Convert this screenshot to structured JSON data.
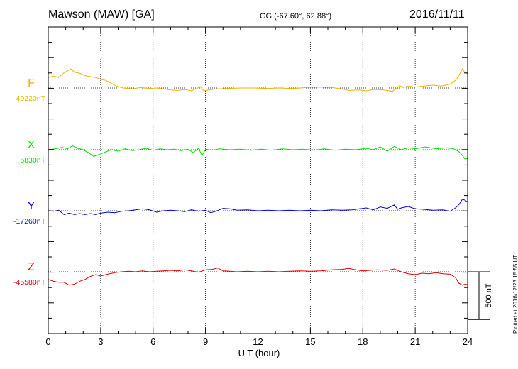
{
  "header": {
    "title": "Mawson (MAW)  [GA]",
    "coords": "GG (-67.60°,  62.88°)",
    "date": "2016/11/11"
  },
  "footer": {
    "plotted": "Plotted at 2016/12/23 15:55 UT"
  },
  "scale_bar": {
    "label": "500 nT",
    "value": 500
  },
  "colors": {
    "F": "#f2b000",
    "X": "#00e000",
    "Y": "#0000e0",
    "Z": "#e00000",
    "axis": "#000000"
  },
  "chart_data": {
    "type": "line",
    "title": "Mawson (MAW)  [GA]",
    "xlabel": "U T (hour)",
    "xlim": [
      0,
      24
    ],
    "xticks": [
      0,
      3,
      6,
      9,
      12,
      15,
      18,
      21,
      24
    ],
    "grid": true,
    "nT_per_panel_row": 640,
    "series": [
      {
        "name": "F",
        "baseline_label": "49220nT",
        "baseline": 49220,
        "color": "#f2b000",
        "points": [
          [
            0,
            49330
          ],
          [
            0.3,
            49345
          ],
          [
            0.6,
            49330
          ],
          [
            0.9,
            49380
          ],
          [
            1.1,
            49400
          ],
          [
            1.3,
            49420
          ],
          [
            1.5,
            49385
          ],
          [
            1.8,
            49375
          ],
          [
            2.1,
            49350
          ],
          [
            2.4,
            49340
          ],
          [
            2.7,
            49330
          ],
          [
            3.0,
            49310
          ],
          [
            3.3,
            49300
          ],
          [
            3.6,
            49270
          ],
          [
            3.9,
            49240
          ],
          [
            4.3,
            49220
          ],
          [
            4.8,
            49210
          ],
          [
            5.3,
            49225
          ],
          [
            5.8,
            49215
          ],
          [
            6.2,
            49220
          ],
          [
            6.6,
            49210
          ],
          [
            7.0,
            49200
          ],
          [
            7.4,
            49195
          ],
          [
            7.8,
            49205
          ],
          [
            8.2,
            49190
          ],
          [
            8.5,
            49215
          ],
          [
            8.7,
            49235
          ],
          [
            8.9,
            49190
          ],
          [
            9.2,
            49200
          ],
          [
            9.6,
            49210
          ],
          [
            10.2,
            49215
          ],
          [
            11.0,
            49220
          ],
          [
            11.8,
            49220
          ],
          [
            12.5,
            49215
          ],
          [
            13.2,
            49220
          ],
          [
            14.0,
            49215
          ],
          [
            14.8,
            49225
          ],
          [
            15.5,
            49230
          ],
          [
            16.2,
            49225
          ],
          [
            16.8,
            49210
          ],
          [
            17.2,
            49195
          ],
          [
            17.8,
            49200
          ],
          [
            18.2,
            49190
          ],
          [
            18.6,
            49205
          ],
          [
            19.2,
            49200
          ],
          [
            19.7,
            49185
          ],
          [
            19.9,
            49210
          ],
          [
            20.1,
            49245
          ],
          [
            20.3,
            49225
          ],
          [
            20.6,
            49240
          ],
          [
            21.0,
            49230
          ],
          [
            21.5,
            49240
          ],
          [
            22.0,
            49250
          ],
          [
            22.5,
            49240
          ],
          [
            23.0,
            49260
          ],
          [
            23.3,
            49300
          ],
          [
            23.5,
            49350
          ],
          [
            23.7,
            49420
          ],
          [
            23.85,
            49380
          ],
          [
            24.0,
            49370
          ]
        ]
      },
      {
        "name": "X",
        "baseline_label": "6830nT",
        "baseline": 6830,
        "color": "#00e000",
        "points": [
          [
            0,
            6830
          ],
          [
            0.4,
            6840
          ],
          [
            0.8,
            6855
          ],
          [
            1.1,
            6840
          ],
          [
            1.4,
            6870
          ],
          [
            1.7,
            6845
          ],
          [
            2.0,
            6830
          ],
          [
            2.3,
            6800
          ],
          [
            2.6,
            6760
          ],
          [
            2.9,
            6780
          ],
          [
            3.2,
            6800
          ],
          [
            3.6,
            6830
          ],
          [
            4.0,
            6815
          ],
          [
            4.4,
            6840
          ],
          [
            4.8,
            6820
          ],
          [
            5.2,
            6830
          ],
          [
            5.6,
            6845
          ],
          [
            6.0,
            6825
          ],
          [
            6.4,
            6840
          ],
          [
            6.8,
            6830
          ],
          [
            7.2,
            6835
          ],
          [
            7.6,
            6820
          ],
          [
            8.0,
            6835
          ],
          [
            8.3,
            6800
          ],
          [
            8.6,
            6845
          ],
          [
            8.8,
            6770
          ],
          [
            9.0,
            6835
          ],
          [
            9.4,
            6825
          ],
          [
            9.8,
            6840
          ],
          [
            10.4,
            6830
          ],
          [
            11.0,
            6835
          ],
          [
            11.6,
            6825
          ],
          [
            12.2,
            6835
          ],
          [
            12.8,
            6825
          ],
          [
            13.4,
            6840
          ],
          [
            14.0,
            6830
          ],
          [
            14.6,
            6835
          ],
          [
            15.2,
            6825
          ],
          [
            15.8,
            6840
          ],
          [
            16.4,
            6825
          ],
          [
            17.0,
            6835
          ],
          [
            17.6,
            6830
          ],
          [
            18.2,
            6845
          ],
          [
            18.6,
            6830
          ],
          [
            19.0,
            6860
          ],
          [
            19.4,
            6815
          ],
          [
            19.8,
            6865
          ],
          [
            20.2,
            6830
          ],
          [
            20.6,
            6850
          ],
          [
            21.0,
            6840
          ],
          [
            21.6,
            6860
          ],
          [
            22.2,
            6840
          ],
          [
            22.8,
            6850
          ],
          [
            23.2,
            6840
          ],
          [
            23.5,
            6810
          ],
          [
            23.7,
            6770
          ],
          [
            23.85,
            6730
          ],
          [
            24.0,
            6740
          ]
        ]
      },
      {
        "name": "Y",
        "baseline_label": "-17260nT",
        "baseline": -17260,
        "color": "#0000e0",
        "points": [
          [
            0,
            -17260
          ],
          [
            0.3,
            -17265
          ],
          [
            0.6,
            -17255
          ],
          [
            0.9,
            -17300
          ],
          [
            1.2,
            -17285
          ],
          [
            1.5,
            -17300
          ],
          [
            1.8,
            -17290
          ],
          [
            2.1,
            -17300
          ],
          [
            2.4,
            -17290
          ],
          [
            2.7,
            -17300
          ],
          [
            3.0,
            -17285
          ],
          [
            3.4,
            -17275
          ],
          [
            3.8,
            -17280
          ],
          [
            4.2,
            -17265
          ],
          [
            4.6,
            -17260
          ],
          [
            5.0,
            -17250
          ],
          [
            5.4,
            -17240
          ],
          [
            5.8,
            -17250
          ],
          [
            6.2,
            -17275
          ],
          [
            6.6,
            -17260
          ],
          [
            7.0,
            -17255
          ],
          [
            7.4,
            -17260
          ],
          [
            7.8,
            -17270
          ],
          [
            8.2,
            -17250
          ],
          [
            8.6,
            -17265
          ],
          [
            9.0,
            -17255
          ],
          [
            9.3,
            -17280
          ],
          [
            9.6,
            -17265
          ],
          [
            10.0,
            -17235
          ],
          [
            10.4,
            -17240
          ],
          [
            10.8,
            -17255
          ],
          [
            11.4,
            -17250
          ],
          [
            12.0,
            -17260
          ],
          [
            12.6,
            -17255
          ],
          [
            13.2,
            -17260
          ],
          [
            13.8,
            -17255
          ],
          [
            14.4,
            -17260
          ],
          [
            15.0,
            -17255
          ],
          [
            15.6,
            -17260
          ],
          [
            16.2,
            -17250
          ],
          [
            16.8,
            -17255
          ],
          [
            17.4,
            -17250
          ],
          [
            17.8,
            -17240
          ],
          [
            18.2,
            -17230
          ],
          [
            18.6,
            -17250
          ],
          [
            19.0,
            -17220
          ],
          [
            19.4,
            -17235
          ],
          [
            19.8,
            -17200
          ],
          [
            20.0,
            -17245
          ],
          [
            20.2,
            -17230
          ],
          [
            20.6,
            -17215
          ],
          [
            21.0,
            -17240
          ],
          [
            21.5,
            -17245
          ],
          [
            22.0,
            -17255
          ],
          [
            22.6,
            -17250
          ],
          [
            23.0,
            -17265
          ],
          [
            23.3,
            -17230
          ],
          [
            23.5,
            -17195
          ],
          [
            23.7,
            -17140
          ],
          [
            23.85,
            -17150
          ],
          [
            24.0,
            -17170
          ]
        ]
      },
      {
        "name": "Z",
        "baseline_label": "-45580nT",
        "baseline": -45580,
        "color": "#e00000",
        "points": [
          [
            0,
            -45660
          ],
          [
            0.3,
            -45680
          ],
          [
            0.6,
            -45690
          ],
          [
            0.9,
            -45690
          ],
          [
            1.2,
            -45720
          ],
          [
            1.5,
            -45710
          ],
          [
            1.8,
            -45680
          ],
          [
            2.1,
            -45660
          ],
          [
            2.4,
            -45630
          ],
          [
            2.7,
            -45610
          ],
          [
            3.0,
            -45625
          ],
          [
            3.4,
            -45605
          ],
          [
            3.8,
            -45590
          ],
          [
            4.2,
            -45580
          ],
          [
            4.6,
            -45575
          ],
          [
            5.0,
            -45580
          ],
          [
            5.4,
            -45570
          ],
          [
            5.8,
            -45580
          ],
          [
            6.2,
            -45575
          ],
          [
            6.6,
            -45570
          ],
          [
            7.0,
            -45565
          ],
          [
            7.4,
            -45570
          ],
          [
            7.8,
            -45560
          ],
          [
            8.2,
            -45570
          ],
          [
            8.6,
            -45585
          ],
          [
            9.0,
            -45560
          ],
          [
            9.4,
            -45555
          ],
          [
            9.7,
            -45540
          ],
          [
            10.0,
            -45570
          ],
          [
            10.4,
            -45575
          ],
          [
            10.8,
            -45580
          ],
          [
            11.4,
            -45575
          ],
          [
            12.0,
            -45580
          ],
          [
            12.6,
            -45575
          ],
          [
            13.2,
            -45580
          ],
          [
            13.8,
            -45575
          ],
          [
            14.4,
            -45570
          ],
          [
            15.0,
            -45575
          ],
          [
            15.6,
            -45570
          ],
          [
            16.2,
            -45560
          ],
          [
            16.8,
            -45555
          ],
          [
            17.2,
            -45545
          ],
          [
            17.6,
            -45560
          ],
          [
            18.0,
            -45570
          ],
          [
            18.4,
            -45565
          ],
          [
            18.8,
            -45560
          ],
          [
            19.4,
            -45565
          ],
          [
            19.8,
            -45550
          ],
          [
            20.2,
            -45580
          ],
          [
            20.6,
            -45600
          ],
          [
            21.0,
            -45610
          ],
          [
            21.4,
            -45595
          ],
          [
            21.8,
            -45600
          ],
          [
            22.2,
            -45590
          ],
          [
            22.6,
            -45600
          ],
          [
            23.0,
            -45605
          ],
          [
            23.3,
            -45640
          ],
          [
            23.5,
            -45700
          ],
          [
            23.7,
            -45720
          ],
          [
            23.85,
            -45710
          ],
          [
            24.0,
            -45715
          ]
        ]
      }
    ]
  }
}
